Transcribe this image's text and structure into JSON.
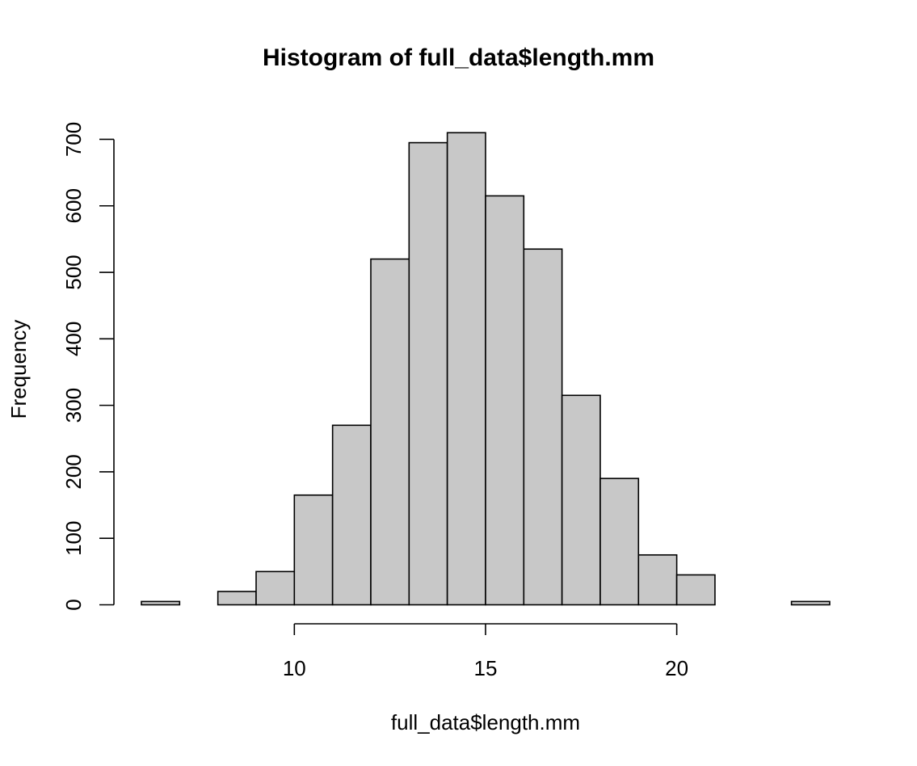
{
  "chart_data": {
    "type": "bar",
    "title": "Histogram of full_data$length.mm",
    "xlabel": "full_data$length.mm",
    "ylabel": "Frequency",
    "bins": [
      {
        "start": 6,
        "end": 7,
        "count": 5
      },
      {
        "start": 7,
        "end": 8,
        "count": 0
      },
      {
        "start": 8,
        "end": 9,
        "count": 20
      },
      {
        "start": 9,
        "end": 10,
        "count": 50
      },
      {
        "start": 10,
        "end": 11,
        "count": 165
      },
      {
        "start": 11,
        "end": 12,
        "count": 270
      },
      {
        "start": 12,
        "end": 13,
        "count": 520
      },
      {
        "start": 13,
        "end": 14,
        "count": 695
      },
      {
        "start": 14,
        "end": 15,
        "count": 710
      },
      {
        "start": 15,
        "end": 16,
        "count": 615
      },
      {
        "start": 16,
        "end": 17,
        "count": 535
      },
      {
        "start": 17,
        "end": 18,
        "count": 315
      },
      {
        "start": 18,
        "end": 19,
        "count": 190
      },
      {
        "start": 19,
        "end": 20,
        "count": 75
      },
      {
        "start": 20,
        "end": 21,
        "count": 45
      },
      {
        "start": 21,
        "end": 22,
        "count": 0
      },
      {
        "start": 22,
        "end": 23,
        "count": 0
      },
      {
        "start": 23,
        "end": 24,
        "count": 5
      }
    ],
    "x_ticks": [
      10,
      15,
      20
    ],
    "y_ticks": [
      0,
      100,
      200,
      300,
      400,
      500,
      600,
      700
    ],
    "xlim": [
      6,
      24
    ],
    "ylim": [
      0,
      710
    ],
    "bar_fill": "#c8c8c8",
    "bar_stroke": "#000000",
    "grid": false,
    "legend": "none"
  }
}
